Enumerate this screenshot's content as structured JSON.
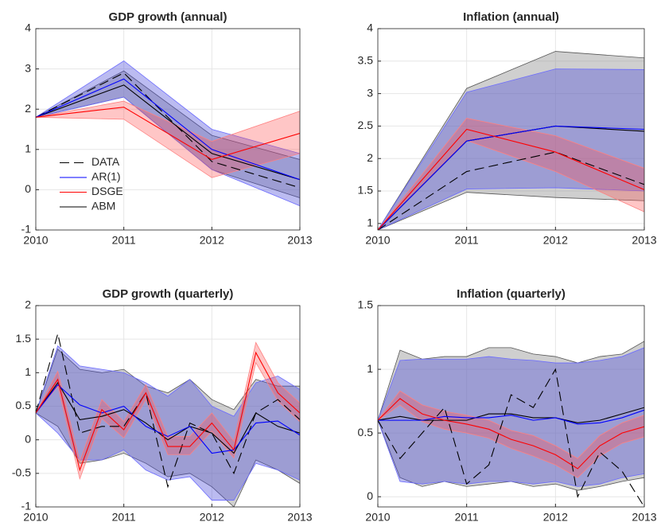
{
  "chart_data": [
    {
      "type": "line",
      "title": "GDP growth (annual)",
      "x": [
        2010,
        2011,
        2012,
        2013
      ],
      "xlim": [
        2010,
        2013
      ],
      "xticks": [
        2010,
        2011,
        2012,
        2013
      ],
      "ylim": [
        -1,
        4
      ],
      "yticks": [
        -1,
        0,
        1,
        2,
        3,
        4
      ],
      "grid": true,
      "legend": "left",
      "series": [
        {
          "name": "DATA",
          "color": "#000000",
          "style": "dashed",
          "values": [
            1.8,
            2.9,
            0.7,
            0.05
          ]
        },
        {
          "name": "AR(1)",
          "color": "#0000ff",
          "style": "solid",
          "values": [
            1.8,
            2.75,
            1.0,
            0.25
          ],
          "lower": [
            1.8,
            2.3,
            0.5,
            -0.4
          ],
          "upper": [
            1.8,
            3.2,
            1.5,
            0.9
          ]
        },
        {
          "name": "DSGE",
          "color": "#ff0000",
          "style": "solid",
          "values": [
            1.8,
            2.05,
            0.75,
            1.4
          ],
          "lower": [
            1.8,
            1.75,
            0.3,
            0.9
          ],
          "upper": [
            1.8,
            2.2,
            1.2,
            1.95
          ]
        },
        {
          "name": "ABM",
          "color": "#000000",
          "style": "solid",
          "values": [
            1.8,
            2.6,
            0.9,
            0.25
          ],
          "lower": [
            1.8,
            2.3,
            0.5,
            -0.2
          ],
          "upper": [
            1.8,
            2.95,
            1.35,
            0.75
          ]
        }
      ]
    },
    {
      "type": "line",
      "title": "Inflation (annual)",
      "x": [
        2010,
        2011,
        2012,
        2013
      ],
      "xlim": [
        2010,
        2013
      ],
      "xticks": [
        2010,
        2011,
        2012,
        2013
      ],
      "ylim": [
        0.9,
        4
      ],
      "yticks": [
        1,
        1.5,
        2,
        2.5,
        3,
        3.5,
        4
      ],
      "grid": true,
      "series": [
        {
          "color": "#000000",
          "style": "dashed",
          "values": [
            0.9,
            1.8,
            2.1,
            1.6
          ]
        },
        {
          "color": "#0000ff",
          "style": "solid",
          "values": [
            0.9,
            2.27,
            2.5,
            2.45
          ],
          "lower": [
            0.9,
            1.53,
            1.55,
            1.5
          ],
          "upper": [
            0.9,
            3.02,
            3.38,
            3.37
          ]
        },
        {
          "color": "#ff0000",
          "style": "solid",
          "values": [
            0.9,
            2.45,
            2.1,
            1.52
          ],
          "lower": [
            0.9,
            2.28,
            1.8,
            1.18
          ],
          "upper": [
            0.9,
            2.62,
            2.35,
            1.85
          ]
        },
        {
          "color": "#000000",
          "style": "solid",
          "values": [
            0.9,
            2.27,
            2.5,
            2.42
          ],
          "lower": [
            0.9,
            1.48,
            1.4,
            1.35
          ],
          "upper": [
            0.9,
            3.08,
            3.65,
            3.55
          ]
        }
      ]
    },
    {
      "type": "line",
      "title": "GDP growth (quarterly)",
      "x": [
        2010,
        2010.25,
        2010.5,
        2010.75,
        2011,
        2011.25,
        2011.5,
        2011.75,
        2012,
        2012.25,
        2012.5,
        2012.75,
        2013
      ],
      "xlim": [
        2010,
        2013
      ],
      "xticks": [
        2010,
        2011,
        2012,
        2013
      ],
      "ylim": [
        -1,
        2
      ],
      "yticks": [
        -1,
        -0.5,
        0,
        0.5,
        1,
        1.5,
        2
      ],
      "grid": true,
      "series": [
        {
          "color": "#000000",
          "style": "dashed",
          "values": [
            0.4,
            1.58,
            0.1,
            0.2,
            0.2,
            0.7,
            -0.7,
            0.25,
            0.1,
            -0.5,
            0.4,
            0.6,
            0.3
          ]
        },
        {
          "color": "#0000ff",
          "style": "solid",
          "values": [
            0.4,
            0.82,
            0.52,
            0.4,
            0.5,
            0.2,
            0.05,
            0.2,
            -0.2,
            -0.15,
            0.25,
            0.28,
            0.07
          ],
          "lower": [
            0.4,
            0.1,
            -0.3,
            -0.3,
            -0.15,
            -0.45,
            -0.6,
            -0.55,
            -0.9,
            -0.9,
            -0.35,
            -0.45,
            -0.6
          ],
          "upper": [
            0.4,
            1.4,
            1.1,
            1.05,
            1.0,
            0.85,
            0.65,
            0.9,
            0.5,
            0.35,
            0.85,
            0.95,
            0.75
          ]
        },
        {
          "color": "#ff0000",
          "style": "solid",
          "values": [
            0.4,
            0.9,
            -0.45,
            0.45,
            0.15,
            0.7,
            -0.1,
            -0.1,
            0.25,
            -0.15,
            1.3,
            0.7,
            0.4
          ],
          "lower": [
            0.4,
            0.8,
            -0.58,
            0.32,
            0.03,
            0.6,
            -0.22,
            -0.22,
            0.13,
            -0.27,
            1.15,
            0.58,
            0.27
          ],
          "upper": [
            0.4,
            1.02,
            -0.32,
            0.6,
            0.27,
            0.82,
            0.05,
            0.05,
            0.4,
            -0.02,
            1.45,
            0.85,
            0.55
          ]
        },
        {
          "color": "#000000",
          "style": "solid",
          "values": [
            0.4,
            0.85,
            0.3,
            0.35,
            0.45,
            0.25,
            0.0,
            0.2,
            0.1,
            -0.2,
            0.4,
            0.2,
            0.1
          ],
          "lower": [
            0.4,
            0.2,
            -0.35,
            -0.3,
            -0.2,
            -0.35,
            -0.55,
            -0.5,
            -0.7,
            -1.0,
            -0.3,
            -0.45,
            -0.65
          ],
          "upper": [
            0.4,
            1.35,
            1.05,
            1.0,
            1.05,
            0.8,
            0.7,
            0.9,
            0.6,
            0.45,
            0.9,
            0.8,
            0.8
          ]
        }
      ]
    },
    {
      "type": "line",
      "title": "Inflation (quarterly)",
      "x": [
        2010,
        2010.25,
        2010.5,
        2010.75,
        2011,
        2011.25,
        2011.5,
        2011.75,
        2012,
        2012.25,
        2012.5,
        2012.75,
        2013
      ],
      "xlim": [
        2010,
        2013
      ],
      "xticks": [
        2010,
        2011,
        2012,
        2013
      ],
      "ylim": [
        -0.08,
        1.5
      ],
      "yticks": [
        0,
        0.5,
        1,
        1.5
      ],
      "grid": true,
      "series": [
        {
          "color": "#000000",
          "style": "dashed",
          "values": [
            0.6,
            0.3,
            0.5,
            0.7,
            0.1,
            0.25,
            0.8,
            0.7,
            1.0,
            0.0,
            0.35,
            0.2,
            -0.08
          ]
        },
        {
          "color": "#0000ff",
          "style": "solid",
          "values": [
            0.6,
            0.6,
            0.6,
            0.63,
            0.62,
            0.62,
            0.64,
            0.6,
            0.62,
            0.57,
            0.58,
            0.62,
            0.68
          ],
          "lower": [
            0.6,
            0.12,
            0.1,
            0.12,
            0.1,
            0.12,
            0.12,
            0.1,
            0.12,
            0.08,
            0.1,
            0.15,
            0.18
          ],
          "upper": [
            0.6,
            1.07,
            1.08,
            1.08,
            1.08,
            1.1,
            1.08,
            1.07,
            1.05,
            1.05,
            1.07,
            1.1,
            1.17
          ]
        },
        {
          "color": "#ff0000",
          "style": "solid",
          "values": [
            0.6,
            0.77,
            0.65,
            0.6,
            0.57,
            0.53,
            0.45,
            0.4,
            0.33,
            0.22,
            0.4,
            0.5,
            0.55
          ],
          "lower": [
            0.6,
            0.72,
            0.59,
            0.53,
            0.5,
            0.46,
            0.38,
            0.32,
            0.25,
            0.15,
            0.32,
            0.42,
            0.47
          ],
          "upper": [
            0.6,
            0.83,
            0.72,
            0.67,
            0.64,
            0.6,
            0.52,
            0.48,
            0.4,
            0.3,
            0.48,
            0.58,
            0.64
          ]
        },
        {
          "color": "#000000",
          "style": "solid",
          "values": [
            0.6,
            0.63,
            0.6,
            0.6,
            0.6,
            0.65,
            0.65,
            0.62,
            0.62,
            0.58,
            0.6,
            0.65,
            0.7
          ],
          "lower": [
            0.6,
            0.15,
            0.08,
            0.12,
            0.08,
            0.1,
            0.12,
            0.08,
            0.1,
            0.05,
            0.08,
            0.12,
            0.15
          ],
          "upper": [
            0.6,
            1.15,
            1.08,
            1.1,
            1.1,
            1.17,
            1.17,
            1.12,
            1.1,
            1.05,
            1.1,
            1.12,
            1.22
          ]
        }
      ]
    }
  ]
}
